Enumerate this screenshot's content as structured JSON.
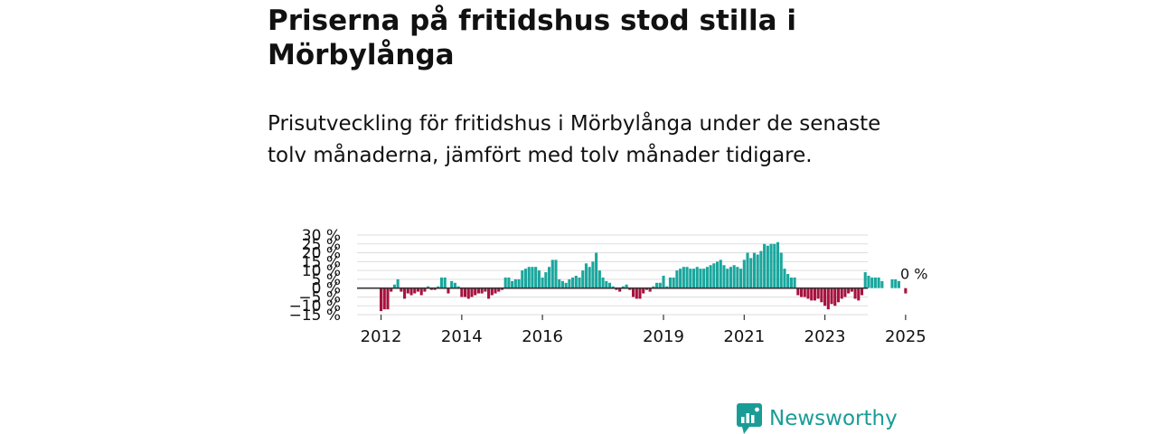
{
  "header": {
    "title": "Priserna på fritidshus stod stilla i Mörbylånga",
    "subtitle": "Prisutveckling för fritidshus i Mörbylånga under de senaste tolv månaderna, jämfört med tolv månader tidigare."
  },
  "brand": {
    "name": "Newsworthy",
    "color": "#1a9c96"
  },
  "colors": {
    "positive": "#1aa69d",
    "negative": "#a8123f",
    "zero_line": "#333333",
    "grid": "#dddddd"
  },
  "chart_data": {
    "type": "bar",
    "title": "Prisutveckling för fritidshus i Mörbylånga",
    "xlabel": "",
    "ylabel": "",
    "ylim": [
      -15,
      30
    ],
    "y_ticks": [
      "30 %",
      "25 %",
      "20 %",
      "15 %",
      "10 %",
      "5 %",
      "0 %",
      "−5 %",
      "−10 %",
      "−15 %"
    ],
    "y_tick_values": [
      30,
      25,
      20,
      15,
      10,
      5,
      0,
      -5,
      -10,
      -15
    ],
    "x_ticks": [
      {
        "label": "2012",
        "index": 0
      },
      {
        "label": "2014",
        "index": 24
      },
      {
        "label": "2016",
        "index": 48
      },
      {
        "label": "2019",
        "index": 84
      },
      {
        "label": "2021",
        "index": 108
      },
      {
        "label": "2023",
        "index": 132
      },
      {
        "label": "2025",
        "index": 156
      }
    ],
    "last_value_label": "0 %",
    "series": [
      {
        "name": "Prisutveckling",
        "values": [
          -13,
          -12,
          -12,
          -2,
          2,
          5,
          -2,
          -6,
          -3,
          -4,
          -3,
          -2,
          -4,
          -2,
          1,
          -1,
          -1,
          1,
          6,
          6,
          -3,
          4,
          3,
          1,
          -5,
          -5,
          -6,
          -5,
          -4,
          -3,
          -3,
          -2,
          -6,
          -4,
          -3,
          -2,
          -1,
          6,
          6,
          4,
          5,
          5,
          10,
          11,
          12,
          12,
          12,
          10,
          6,
          9,
          12,
          16,
          16,
          5,
          4,
          3,
          5,
          6,
          7,
          6,
          10,
          14,
          12,
          15,
          20,
          10,
          6,
          4,
          3,
          1,
          -1,
          -2,
          1,
          2,
          -1,
          -5,
          -6,
          -6,
          -3,
          -1,
          -2,
          1,
          3,
          3,
          7,
          1,
          6,
          6,
          10,
          11,
          12,
          12,
          11,
          11,
          12,
          11,
          11,
          12,
          13,
          14,
          15,
          16,
          13,
          11,
          12,
          13,
          12,
          11,
          16,
          20,
          17,
          20,
          19,
          21,
          25,
          24,
          25,
          25,
          26,
          20,
          11,
          8,
          6,
          6,
          -4,
          -5,
          -5,
          -6,
          -7,
          -7,
          -6,
          -8,
          -10,
          -12,
          -9,
          -10,
          -8,
          -6,
          -5,
          -3,
          -2,
          -6,
          -7,
          -4,
          9,
          7,
          6,
          6,
          6,
          4,
          0,
          0,
          5,
          5,
          4,
          0,
          -3,
          0
        ]
      }
    ]
  }
}
